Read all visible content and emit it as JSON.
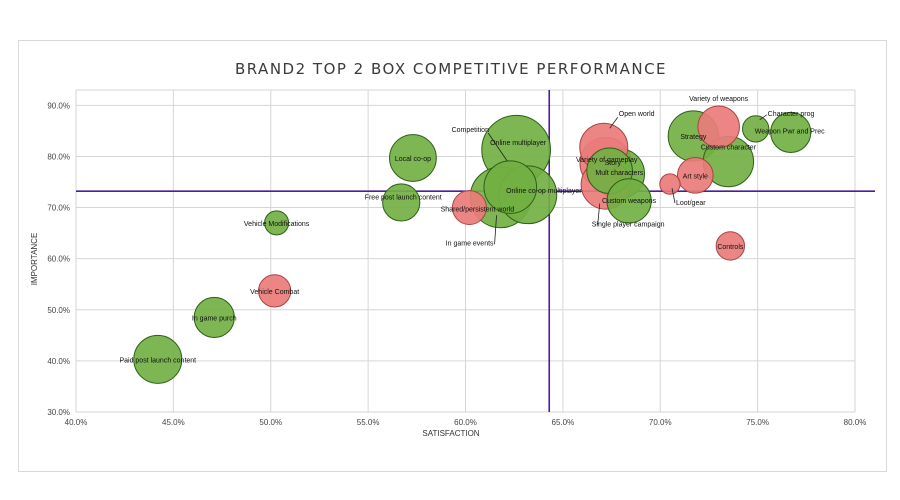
{
  "chart_data": {
    "type": "scatter",
    "subtype": "bubble",
    "title": "BRAND2 TOP 2 BOX COMPETITIVE PERFORMANCE",
    "xlabel": "SATISFACTION",
    "ylabel": "IMPORTANCE",
    "xlim": [
      40.0,
      80.0
    ],
    "ylim": [
      30.0,
      93.0
    ],
    "xticks": [
      40,
      45,
      50,
      55,
      60,
      65,
      70,
      75,
      80
    ],
    "yticks": [
      30,
      40,
      50,
      60,
      70,
      80,
      90
    ],
    "x_reference_line": 64.3,
    "y_reference_line": 73.2,
    "grid": true,
    "colors": {
      "green": "#72b043",
      "green_stroke": "#2f5f16",
      "red": "#e97c7b",
      "red_stroke": "#a84444",
      "reference_line": "#4b1c9e",
      "grid": "#d6d6d6"
    },
    "series": [
      {
        "name": "Paid post launch content",
        "x": 44.2,
        "y": 40.3,
        "size": 1.0,
        "color": "green"
      },
      {
        "name": "In game purch",
        "x": 47.1,
        "y": 48.5,
        "size": 0.7,
        "color": "green"
      },
      {
        "name": "Vehicle Combat",
        "x": 50.2,
        "y": 53.7,
        "size": 0.45,
        "color": "red"
      },
      {
        "name": "Vehicle Modifications",
        "x": 50.3,
        "y": 67.0,
        "size": 0.25,
        "color": "green"
      },
      {
        "name": "Free post launch content",
        "x": 56.7,
        "y": 71.0,
        "size": 0.6,
        "color": "green"
      },
      {
        "name": "Local co-op",
        "x": 57.3,
        "y": 79.7,
        "size": 0.95,
        "color": "green"
      },
      {
        "name": "Shared/persistent world",
        "x": 60.2,
        "y": 70.0,
        "size": 0.5,
        "color": "red"
      },
      {
        "name": "In game events",
        "x": 61.8,
        "y": 72.0,
        "size": 1.6,
        "color": "green"
      },
      {
        "name": "Competition",
        "x": 62.3,
        "y": 74.0,
        "size": 1.2,
        "color": "green"
      },
      {
        "name": "Online co-op multiplayer",
        "x": 63.2,
        "y": 72.5,
        "size": 1.45,
        "color": "green"
      },
      {
        "name": "Online multiplayer",
        "x": 62.6,
        "y": 81.3,
        "size": 2.05,
        "color": "green"
      },
      {
        "name": "Open world",
        "x": 67.1,
        "y": 81.8,
        "size": 1.0,
        "color": "red"
      },
      {
        "name": "Variety of gameplay",
        "x": 67.2,
        "y": 78.7,
        "size": 1.15,
        "color": "red"
      },
      {
        "name": "Single player campaign",
        "x": 67.2,
        "y": 74.5,
        "size": 1.05,
        "color": "red"
      },
      {
        "name": "Story",
        "x": 67.4,
        "y": 77.2,
        "size": 0.9,
        "color": "green"
      },
      {
        "name": "Mult characters",
        "x": 67.9,
        "y": 76.6,
        "size": 1.1,
        "color": "green"
      },
      {
        "name": "Custom weapons",
        "x": 68.4,
        "y": 71.3,
        "size": 0.85,
        "color": "green"
      },
      {
        "name": "Loot/gear",
        "x": 70.5,
        "y": 74.6,
        "size": 0.18,
        "color": "red"
      },
      {
        "name": "Art style",
        "x": 71.8,
        "y": 76.3,
        "size": 0.55,
        "color": "red"
      },
      {
        "name": "Strategy",
        "x": 71.7,
        "y": 84.0,
        "size": 1.1,
        "color": "green"
      },
      {
        "name": "Variety of weapons",
        "x": 73.0,
        "y": 85.8,
        "size": 0.75,
        "color": "red"
      },
      {
        "name": "Custom character",
        "x": 73.5,
        "y": 79.0,
        "size": 1.1,
        "color": "green"
      },
      {
        "name": "Controls",
        "x": 73.6,
        "y": 62.5,
        "size": 0.35,
        "color": "red"
      },
      {
        "name": "Character prog",
        "x": 74.9,
        "y": 85.4,
        "size": 0.3,
        "color": "green"
      },
      {
        "name": "Weapon Pwr and Prec",
        "x": 76.7,
        "y": 84.7,
        "size": 0.7,
        "color": "green"
      }
    ]
  }
}
